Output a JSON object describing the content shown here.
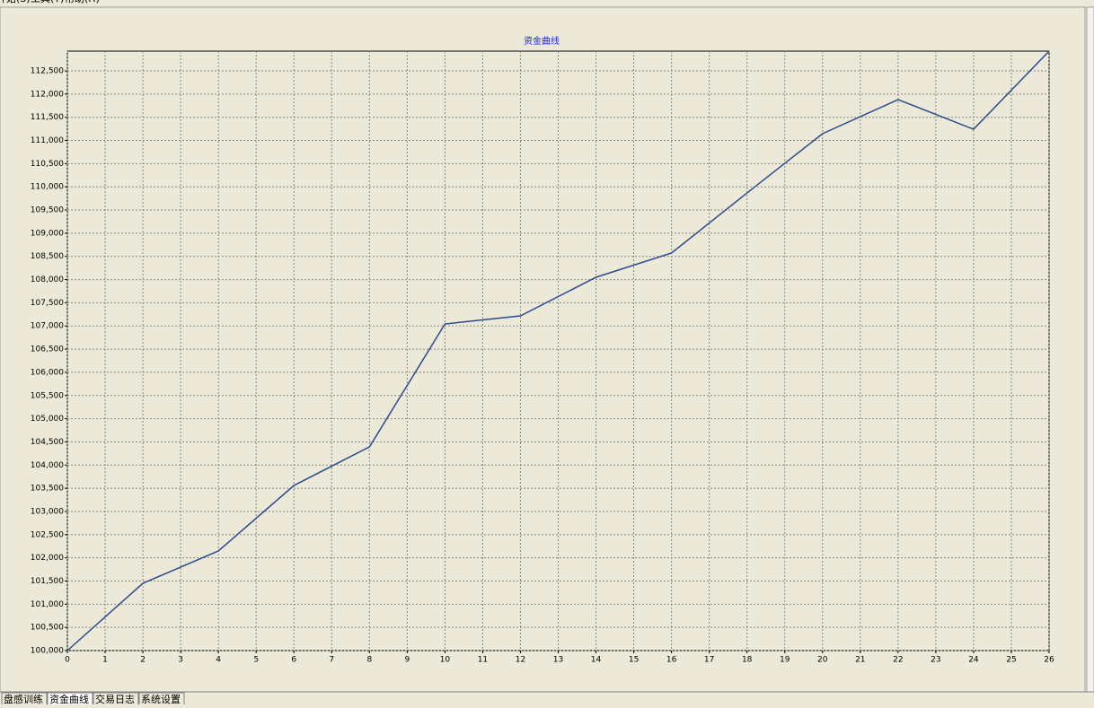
{
  "menu": [
    "开始(S)",
    "工具(T)",
    "帮助(H)"
  ],
  "tabs": [
    "盘感训练",
    "资金曲线",
    "交易日志",
    "系统设置"
  ],
  "chart_data": {
    "type": "line",
    "title": "资金曲线",
    "x": [
      0,
      2,
      4,
      6,
      8,
      10,
      12,
      14,
      16,
      18,
      20,
      22,
      24,
      26
    ],
    "series": [
      {
        "color": "#2b4a8c",
        "values": [
          100000,
          101451,
          102148,
          103560,
          104392,
          107043,
          107217,
          108050,
          108572,
          109868,
          111146,
          111881,
          111242,
          112926
        ]
      }
    ],
    "xlim": [
      0,
      26
    ],
    "xticks": [
      0,
      1,
      2,
      3,
      4,
      5,
      6,
      7,
      8,
      9,
      10,
      11,
      12,
      13,
      14,
      15,
      16,
      17,
      18,
      19,
      20,
      21,
      22,
      23,
      24,
      25,
      26
    ],
    "ylim": [
      100000,
      112926
    ],
    "yticks": [
      {
        "value": 100000,
        "label": "100,000"
      },
      {
        "value": 100500,
        "label": "100,500"
      },
      {
        "value": 101000,
        "label": "101,000"
      },
      {
        "value": 101500,
        "label": "101,500"
      },
      {
        "value": 102000,
        "label": "102,000"
      },
      {
        "value": 102500,
        "label": "102,500"
      },
      {
        "value": 103000,
        "label": "103,000"
      },
      {
        "value": 103500,
        "label": "103,500"
      },
      {
        "value": 104000,
        "label": "104,000"
      },
      {
        "value": 104500,
        "label": "104,500"
      },
      {
        "value": 105000,
        "label": "105,000"
      },
      {
        "value": 105500,
        "label": "105,500"
      },
      {
        "value": 106000,
        "label": "106,000"
      },
      {
        "value": 106500,
        "label": "106,500"
      },
      {
        "value": 107000,
        "label": "107,000"
      },
      {
        "value": 107500,
        "label": "107,500"
      },
      {
        "value": 108000,
        "label": "108,000"
      },
      {
        "value": 108500,
        "label": "108,500"
      },
      {
        "value": 109000,
        "label": "109,000"
      },
      {
        "value": 109500,
        "label": "109,500"
      },
      {
        "value": 110000,
        "label": "110,000"
      },
      {
        "value": 110500,
        "label": "110,500"
      },
      {
        "value": 111000,
        "label": "111,000"
      },
      {
        "value": 111500,
        "label": "111,500"
      },
      {
        "value": 112000,
        "label": "112,000"
      },
      {
        "value": 112500,
        "label": "112,500"
      }
    ],
    "grid": true
  }
}
